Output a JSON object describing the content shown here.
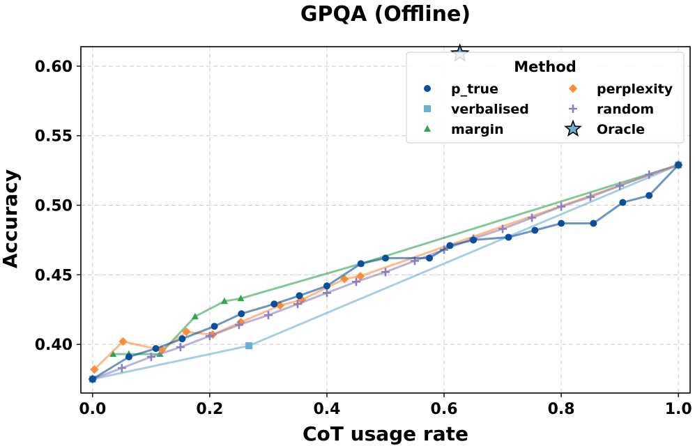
{
  "chart_data": {
    "type": "line",
    "title": "GPQA (Offline)",
    "xlabel": "CoT usage rate",
    "ylabel": "Accuracy",
    "xlim": [
      -0.02,
      1.02
    ],
    "ylim": [
      0.365,
      0.614
    ],
    "xticks": [
      "0.0",
      "0.2",
      "0.4",
      "0.6",
      "0.8",
      "1.0"
    ],
    "yticks": [
      "0.40",
      "0.45",
      "0.50",
      "0.55",
      "0.60"
    ],
    "grid": true,
    "legend": {
      "title": "Method",
      "placement": "top-right"
    },
    "series": [
      {
        "name": "p_true",
        "color": "#0a4f9c",
        "marker": "circle",
        "points": [
          [
            0.0,
            0.375
          ],
          [
            0.062,
            0.391
          ],
          [
            0.108,
            0.397
          ],
          [
            0.153,
            0.404
          ],
          [
            0.208,
            0.413
          ],
          [
            0.254,
            0.422
          ],
          [
            0.31,
            0.429
          ],
          [
            0.353,
            0.435
          ],
          [
            0.4,
            0.442
          ],
          [
            0.458,
            0.458
          ],
          [
            0.5,
            0.462
          ],
          [
            0.575,
            0.462
          ],
          [
            0.61,
            0.471
          ],
          [
            0.65,
            0.475
          ],
          [
            0.71,
            0.477
          ],
          [
            0.755,
            0.482
          ],
          [
            0.8,
            0.487
          ],
          [
            0.855,
            0.487
          ],
          [
            0.905,
            0.502
          ],
          [
            0.95,
            0.507
          ],
          [
            1.0,
            0.529
          ]
        ]
      },
      {
        "name": "verbalised",
        "color": "#6baed6",
        "marker": "square",
        "points": [
          [
            0.0,
            0.375
          ],
          [
            0.267,
            0.399
          ],
          [
            1.0,
            0.529
          ]
        ]
      },
      {
        "name": "margin",
        "color": "#31a354",
        "marker": "triangle",
        "points": [
          [
            0.035,
            0.393
          ],
          [
            0.062,
            0.393
          ],
          [
            0.115,
            0.393
          ],
          [
            0.175,
            0.42
          ],
          [
            0.225,
            0.431
          ],
          [
            0.253,
            0.433
          ],
          [
            0.458,
            0.458
          ],
          [
            1.0,
            0.529
          ]
        ]
      },
      {
        "name": "perplexity",
        "color": "#fd8d3c",
        "marker": "diamond",
        "points": [
          [
            0.003,
            0.382
          ],
          [
            0.052,
            0.402
          ],
          [
            0.118,
            0.396
          ],
          [
            0.16,
            0.409
          ],
          [
            0.205,
            0.407
          ],
          [
            0.253,
            0.416
          ],
          [
            0.32,
            0.428
          ],
          [
            0.357,
            0.432
          ],
          [
            0.43,
            0.447
          ],
          [
            0.457,
            0.449
          ],
          [
            1.0,
            0.529
          ]
        ]
      },
      {
        "name": "random",
        "color": "#8c7fbf",
        "marker": "plus",
        "points": [
          [
            0.0,
            0.375
          ],
          [
            0.05,
            0.383
          ],
          [
            0.1,
            0.391
          ],
          [
            0.15,
            0.398
          ],
          [
            0.2,
            0.406
          ],
          [
            0.25,
            0.414
          ],
          [
            0.3,
            0.421
          ],
          [
            0.35,
            0.429
          ],
          [
            0.4,
            0.437
          ],
          [
            0.45,
            0.445
          ],
          [
            0.5,
            0.452
          ],
          [
            0.55,
            0.46
          ],
          [
            0.6,
            0.468
          ],
          [
            0.65,
            0.476
          ],
          [
            0.7,
            0.483
          ],
          [
            0.75,
            0.491
          ],
          [
            0.8,
            0.499
          ],
          [
            0.85,
            0.506
          ],
          [
            0.9,
            0.514
          ],
          [
            0.95,
            0.522
          ],
          [
            1.0,
            0.529
          ]
        ]
      },
      {
        "name": "Oracle",
        "color": "#6baed6",
        "marker": "star",
        "points": [
          [
            0.627,
            0.609
          ]
        ]
      }
    ]
  }
}
